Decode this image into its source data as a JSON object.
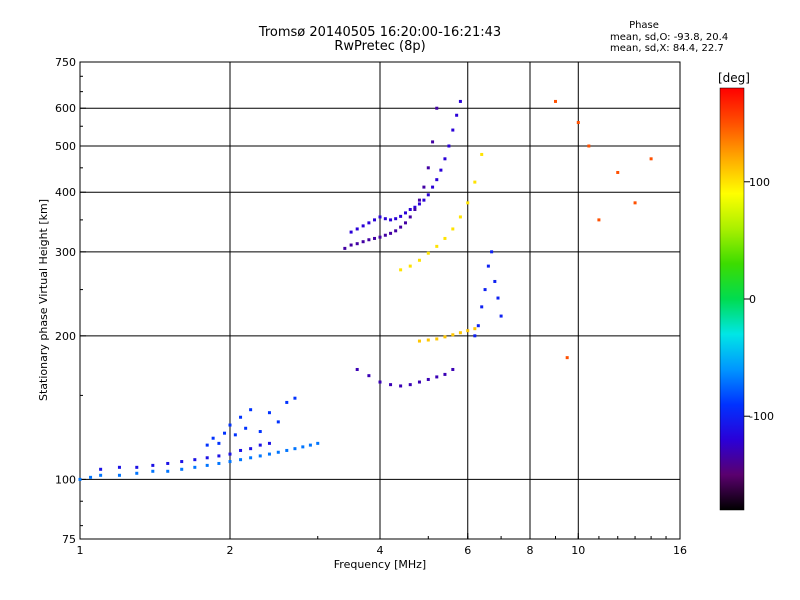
{
  "header": {
    "title": "Tromsø 20140505 16:20:00-16:21:43",
    "subtitle": "RwPretec (8p)",
    "phase_title": "Phase",
    "phase_o": "mean, sd,O: -93.8, 20.4",
    "phase_x": "mean, sd,X:  84.4, 22.7"
  },
  "colorbar": {
    "label": "[deg]",
    "range": [
      -180,
      180
    ],
    "ticks": [
      {
        "value": 100,
        "label": "100"
      },
      {
        "value": 0,
        "label": "0"
      },
      {
        "value": -100,
        "label": "-100"
      }
    ],
    "stops": [
      "#000000",
      "#5a006e",
      "#2a00d8",
      "#0032ff",
      "#0096ff",
      "#00e6e6",
      "#00dc50",
      "#3cdc00",
      "#aaf000",
      "#ffff00",
      "#ffaa00",
      "#ff5000",
      "#ff0000"
    ]
  },
  "chart_data": {
    "type": "scatter",
    "title": "Tromsø 20140505 16:20:00-16:21:43",
    "subtitle": "RwPretec (8p)",
    "xlabel": "Frequency [MHz]",
    "ylabel": "Stationary phase Virtual Height [km]",
    "xscale": "log",
    "yscale": "log",
    "xlim": [
      1,
      16
    ],
    "ylim": [
      75,
      750
    ],
    "xticks": [
      {
        "value": 1,
        "label": "1"
      },
      {
        "value": 2,
        "label": "2"
      },
      {
        "value": 4,
        "label": "4"
      },
      {
        "value": 6,
        "label": "6"
      },
      {
        "value": 8,
        "label": "8"
      },
      {
        "value": 10,
        "label": "10"
      },
      {
        "value": 16,
        "label": "16"
      }
    ],
    "xgrid": [
      2,
      4,
      6,
      8,
      10
    ],
    "yticks": [
      {
        "value": 75,
        "label": "75"
      },
      {
        "value": 100,
        "label": "100"
      },
      {
        "value": 200,
        "label": "200"
      },
      {
        "value": 300,
        "label": "300"
      },
      {
        "value": 400,
        "label": "400"
      },
      {
        "value": 500,
        "label": "500"
      },
      {
        "value": 600,
        "label": "600"
      },
      {
        "value": 750,
        "label": "750"
      }
    ],
    "ygrid": [
      100,
      200,
      300,
      400,
      500,
      600
    ],
    "grid": true,
    "color_variable": "phase [deg]",
    "series": [
      {
        "x": [
          1.0,
          1.05,
          1.1,
          1.2,
          1.3,
          1.4,
          1.5,
          1.6,
          1.7,
          1.8,
          1.9,
          2.0,
          2.1,
          2.2,
          2.3,
          2.4,
          2.5,
          2.6,
          2.7,
          2.8,
          2.9,
          3.0
        ],
        "y": [
          100,
          101,
          102,
          102,
          103,
          104,
          104,
          105,
          106,
          107,
          108,
          109,
          110,
          111,
          112,
          113,
          114,
          115,
          116,
          117,
          118,
          119
        ],
        "phase": -70
      },
      {
        "x": [
          1.1,
          1.2,
          1.3,
          1.4,
          1.5,
          1.6,
          1.7,
          1.8,
          1.9,
          2.0,
          2.1,
          2.2,
          2.3,
          2.4
        ],
        "y": [
          105,
          106,
          106,
          107,
          108,
          109,
          110,
          111,
          112,
          113,
          115,
          116,
          118,
          119
        ],
        "phase": -110
      },
      {
        "x": [
          1.8,
          1.85,
          1.9,
          1.95,
          2.0,
          2.05,
          2.1,
          2.15,
          2.2,
          2.3,
          2.4,
          2.5,
          2.6,
          2.7
        ],
        "y": [
          118,
          122,
          119,
          125,
          130,
          124,
          135,
          128,
          140,
          126,
          138,
          132,
          145,
          148
        ],
        "phase": -90
      },
      {
        "x": [
          3.5,
          3.6,
          3.7,
          3.8,
          3.9,
          4.0,
          4.1,
          4.2,
          4.3,
          4.4,
          4.5,
          4.6,
          4.7,
          4.8,
          4.9,
          5.0,
          5.1,
          5.2,
          5.3,
          5.4,
          5.5,
          5.6,
          5.7,
          5.8
        ],
        "y": [
          330,
          335,
          340,
          345,
          350,
          355,
          352,
          350,
          352,
          356,
          362,
          368,
          372,
          378,
          385,
          395,
          410,
          425,
          445,
          470,
          500,
          540,
          580,
          620
        ],
        "phase": -120
      },
      {
        "x": [
          3.4,
          3.5,
          3.6,
          3.7,
          3.8,
          3.9,
          4.0,
          4.1,
          4.2,
          4.3,
          4.4,
          4.5,
          4.6,
          4.7,
          4.8,
          4.9,
          5.0,
          5.1,
          5.2
        ],
        "y": [
          305,
          310,
          312,
          315,
          318,
          320,
          322,
          325,
          328,
          332,
          338,
          345,
          355,
          368,
          385,
          410,
          450,
          510,
          600
        ],
        "phase": -135
      },
      {
        "x": [
          4.4,
          4.6,
          4.8,
          5.0,
          5.2,
          5.4,
          5.6,
          5.8,
          6.0,
          6.2,
          6.4
        ],
        "y": [
          275,
          280,
          288,
          298,
          308,
          320,
          335,
          355,
          380,
          420,
          480
        ],
        "phase": 100
      },
      {
        "x": [
          6.2,
          6.3,
          6.4,
          6.5,
          6.6,
          6.7,
          6.8,
          6.9,
          7.0
        ],
        "y": [
          200,
          210,
          230,
          250,
          280,
          300,
          260,
          240,
          220
        ],
        "phase": -100
      },
      {
        "x": [
          3.6,
          3.8,
          4.0,
          4.2,
          4.4,
          4.6,
          4.8,
          5.0,
          5.2,
          5.4,
          5.6
        ],
        "y": [
          170,
          165,
          160,
          158,
          157,
          158,
          160,
          162,
          164,
          166,
          170
        ],
        "phase": -130
      },
      {
        "x": [
          4.8,
          5.0,
          5.2,
          5.4,
          5.6,
          5.8,
          6.0,
          6.2
        ],
        "y": [
          195,
          196,
          197,
          199,
          201,
          203,
          205,
          207
        ],
        "phase": 110
      },
      {
        "x": [
          9.0,
          9.5,
          10.0,
          10.5,
          11.0,
          12.0,
          13.0,
          14.0
        ],
        "y": [
          620,
          180,
          560,
          500,
          350,
          440,
          380,
          470
        ],
        "phase": 150
      }
    ]
  }
}
